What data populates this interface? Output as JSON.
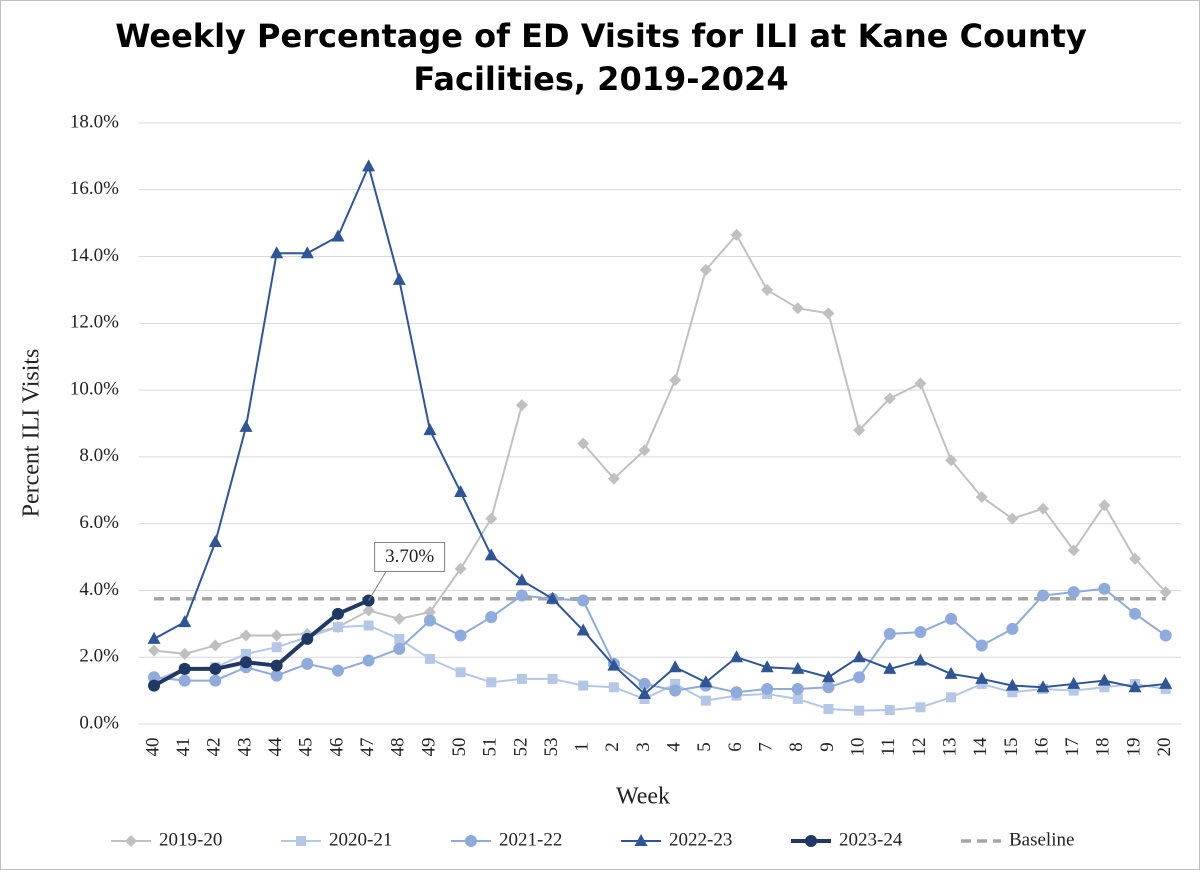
{
  "chart_data": {
    "type": "line",
    "title": "Weekly Percentage of ED Visits for ILI at Kane County Facilities, 2019-2024",
    "x_label": "Week",
    "y_label": "Percent ILI Visits",
    "categories": [
      "40",
      "41",
      "42",
      "43",
      "44",
      "45",
      "46",
      "47",
      "48",
      "49",
      "50",
      "51",
      "52",
      "53",
      "1",
      "2",
      "3",
      "4",
      "5",
      "6",
      "7",
      "8",
      "9",
      "10",
      "11",
      "12",
      "13",
      "14",
      "15",
      "16",
      "17",
      "18",
      "19",
      "20"
    ],
    "ylim": [
      0,
      18
    ],
    "yticks": [
      {
        "value": 0,
        "label": "0.0%"
      },
      {
        "value": 2,
        "label": "2.0%"
      },
      {
        "value": 4,
        "label": "4.0%"
      },
      {
        "value": 6,
        "label": "6.0%"
      },
      {
        "value": 8,
        "label": "8.0%"
      },
      {
        "value": 10,
        "label": "10.0%"
      },
      {
        "value": 12,
        "label": "12.0%"
      },
      {
        "value": 14,
        "label": "14.0%"
      },
      {
        "value": 16,
        "label": "16.0%"
      },
      {
        "value": 18,
        "label": "18.0%"
      }
    ],
    "grid": true,
    "legend": "bottom",
    "series": [
      {
        "name": "2019-20",
        "color": "#c0c0c0",
        "marker": "diamond",
        "values": [
          2.2,
          2.1,
          2.35,
          2.65,
          2.65,
          2.7,
          2.9,
          3.4,
          3.15,
          3.35,
          4.65,
          6.15,
          9.55,
          null,
          8.4,
          7.35,
          8.2,
          10.3,
          13.6,
          14.65,
          13.0,
          12.45,
          12.3,
          8.8,
          9.75,
          10.2,
          7.9,
          6.8,
          6.15,
          6.45,
          5.2,
          6.55,
          4.95,
          3.95
        ]
      },
      {
        "name": "2020-21",
        "color": "#b4c7e7",
        "marker": "square",
        "values": [
          1.3,
          1.65,
          1.7,
          2.1,
          2.3,
          2.6,
          2.9,
          2.95,
          2.55,
          1.95,
          1.55,
          1.25,
          1.35,
          1.35,
          1.15,
          1.1,
          0.75,
          1.2,
          0.7,
          0.85,
          0.9,
          0.75,
          0.45,
          0.4,
          0.42,
          0.5,
          0.8,
          1.2,
          0.95,
          1.05,
          1.0,
          1.1,
          1.2,
          1.05
        ]
      },
      {
        "name": "2021-22",
        "color": "#8faadc",
        "marker": "circle",
        "values": [
          1.4,
          1.3,
          1.3,
          1.7,
          1.45,
          1.8,
          1.6,
          1.9,
          2.25,
          3.1,
          2.65,
          3.2,
          3.85,
          3.75,
          3.7,
          1.8,
          1.2,
          1.0,
          1.15,
          0.95,
          1.05,
          1.05,
          1.1,
          1.4,
          2.7,
          2.75,
          3.15,
          2.35,
          2.85,
          3.85,
          3.95,
          4.05,
          3.3,
          2.65
        ]
      },
      {
        "name": "2022-23",
        "color": "#2f5597",
        "marker": "triangle",
        "values": [
          2.55,
          3.05,
          5.45,
          8.9,
          14.1,
          14.1,
          14.6,
          16.7,
          13.3,
          8.8,
          6.95,
          5.05,
          4.3,
          3.75,
          2.8,
          1.75,
          0.9,
          1.7,
          1.25,
          2.0,
          1.7,
          1.65,
          1.4,
          2.0,
          1.65,
          1.9,
          1.5,
          1.35,
          1.15,
          1.1,
          1.2,
          1.3,
          1.1,
          1.2
        ]
      },
      {
        "name": "2023-24",
        "color": "#1f3864",
        "marker": "circle",
        "bold": true,
        "values": [
          1.15,
          1.65,
          1.65,
          1.85,
          1.75,
          2.55,
          3.3,
          3.7,
          null,
          null,
          null,
          null,
          null,
          null,
          null,
          null,
          null,
          null,
          null,
          null,
          null,
          null,
          null,
          null,
          null,
          null,
          null,
          null,
          null,
          null,
          null,
          null,
          null,
          null
        ],
        "value_labels": [
          null,
          null,
          null,
          null,
          null,
          null,
          null,
          "3.70%",
          null,
          null,
          null,
          null,
          null,
          null,
          null,
          null,
          null,
          null,
          null,
          null,
          null,
          null,
          null,
          null,
          null,
          null,
          null,
          null,
          null,
          null,
          null,
          null,
          null,
          null
        ]
      }
    ],
    "baseline": {
      "name": "Baseline",
      "value": 3.75,
      "color": "#a6a6a6"
    }
  }
}
